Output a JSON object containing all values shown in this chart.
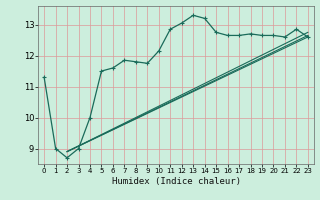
{
  "title": "",
  "xlabel": "Humidex (Indice chaleur)",
  "ylabel": "",
  "bg_color": "#cceedd",
  "grid_color": "#dd9999",
  "line_color": "#1a6b5a",
  "xlim": [
    -0.5,
    23.5
  ],
  "ylim": [
    8.5,
    13.6
  ],
  "yticks": [
    9,
    10,
    11,
    12,
    13
  ],
  "xticks": [
    0,
    1,
    2,
    3,
    4,
    5,
    6,
    7,
    8,
    9,
    10,
    11,
    12,
    13,
    14,
    15,
    16,
    17,
    18,
    19,
    20,
    21,
    22,
    23
  ],
  "line1_x": [
    0,
    1,
    2,
    3,
    4,
    5,
    6,
    7,
    8,
    9,
    10,
    11,
    12,
    13,
    14,
    15,
    16,
    17,
    18,
    19,
    20,
    21,
    22,
    23
  ],
  "line1_y": [
    11.3,
    9.0,
    8.7,
    9.0,
    10.0,
    11.5,
    11.6,
    11.85,
    11.8,
    11.75,
    12.15,
    12.85,
    13.05,
    13.3,
    13.2,
    12.75,
    12.65,
    12.65,
    12.7,
    12.65,
    12.65,
    12.6,
    12.85,
    12.6
  ],
  "line2_x": [
    2,
    23
  ],
  "line2_y": [
    8.9,
    12.6
  ],
  "line3_x": [
    2,
    23
  ],
  "line3_y": [
    8.9,
    12.65
  ],
  "line4_x": [
    2,
    23
  ],
  "line4_y": [
    8.9,
    12.75
  ],
  "figsize": [
    3.2,
    2.0
  ],
  "dpi": 100
}
